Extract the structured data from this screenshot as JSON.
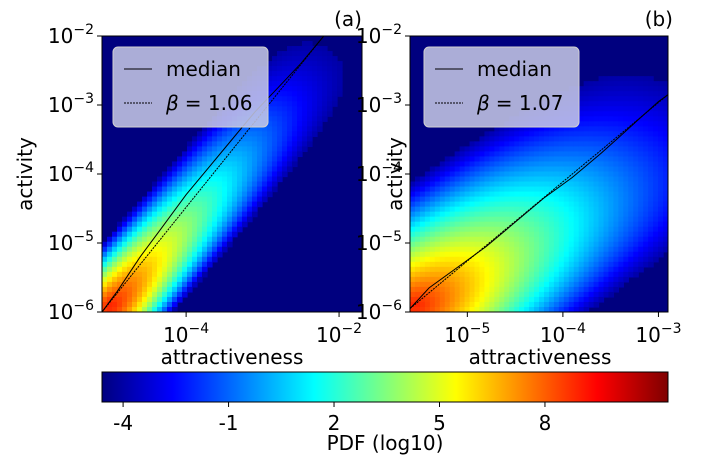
{
  "colors": {
    "jet": [
      "#00007f",
      "#0000ff",
      "#007fff",
      "#00ffff",
      "#7fff7f",
      "#ffff00",
      "#ff7f00",
      "#ff0000",
      "#7f0000"
    ],
    "legend_bg": "#c9cbe6",
    "median_line": "#000000"
  },
  "chart_data": [
    {
      "type": "heatmap",
      "panel": "(a)",
      "xlabel": "attractiveness",
      "ylabel": "activity",
      "xscale": "log",
      "yscale": "log",
      "x_log_range": [
        -5.1,
        -1.7
      ],
      "ylim": [
        1e-06,
        0.01
      ],
      "xticks": [
        {
          "exp": -4,
          "label": "10",
          "sup": "−4"
        },
        {
          "exp": -2,
          "label": "10",
          "sup": "−2"
        }
      ],
      "yticks": [
        {
          "exp": -6,
          "label": "10",
          "sup": "−6"
        },
        {
          "exp": -5,
          "label": "10",
          "sup": "−5"
        },
        {
          "exp": -4,
          "label": "10",
          "sup": "−4"
        },
        {
          "exp": -3,
          "label": "10",
          "sup": "−3"
        },
        {
          "exp": -2,
          "label": "10",
          "sup": "−2"
        }
      ],
      "legend": {
        "placement": "top-left",
        "entries": [
          {
            "label": "median",
            "style": "solid"
          },
          {
            "label": "= 1.06",
            "symbol": "β",
            "style": "dotted"
          }
        ]
      },
      "beta": 1.06,
      "median_log": [
        [
          -5.1,
          -6.0
        ],
        [
          -4.9,
          -5.7
        ],
        [
          -4.6,
          -5.2
        ],
        [
          -4.3,
          -4.75
        ],
        [
          -4.0,
          -4.3
        ],
        [
          -3.7,
          -3.9
        ],
        [
          -3.4,
          -3.5
        ],
        [
          -3.1,
          -3.1
        ],
        [
          -2.8,
          -2.75
        ],
        [
          -2.5,
          -2.4
        ],
        [
          -2.2,
          -2.0
        ]
      ],
      "ridge_log": [
        [
          -5.1,
          -6.1
        ],
        [
          -3.7,
          -4.3
        ],
        [
          -2.2,
          -2.3
        ],
        [
          -1.8,
          -1.9
        ]
      ],
      "ridge_halfwidth": 0.55,
      "peak_log": [
        -5.0,
        -5.9
      ],
      "pdf_range": [
        -4.6,
        9.0
      ]
    },
    {
      "type": "heatmap",
      "panel": "(b)",
      "xlabel": "attractiveness",
      "ylabel": "activity",
      "xscale": "log",
      "yscale": "log",
      "x_log_range": [
        -5.6,
        -2.9
      ],
      "ylim": [
        1e-06,
        0.01
      ],
      "xticks": [
        {
          "exp": -5,
          "label": "10",
          "sup": "−5"
        },
        {
          "exp": -4,
          "label": "10",
          "sup": "−4"
        },
        {
          "exp": -3,
          "label": "10",
          "sup": "−3"
        }
      ],
      "yticks": [
        {
          "exp": -6,
          "label": "10",
          "sup": "−6"
        },
        {
          "exp": -5,
          "label": "10",
          "sup": "−5"
        },
        {
          "exp": -4,
          "label": "10",
          "sup": "−4"
        },
        {
          "exp": -3,
          "label": "10",
          "sup": "−3"
        },
        {
          "exp": -2,
          "label": "10",
          "sup": "−2"
        }
      ],
      "legend": {
        "placement": "top-left",
        "entries": [
          {
            "label": "median",
            "style": "solid"
          },
          {
            "label": "= 1.07",
            "symbol": "β",
            "style": "dotted"
          }
        ]
      },
      "beta": 1.07,
      "median_log": [
        [
          -5.6,
          -5.95
        ],
        [
          -5.4,
          -5.65
        ],
        [
          -5.1,
          -5.35
        ],
        [
          -4.8,
          -5.05
        ],
        [
          -4.5,
          -4.7
        ],
        [
          -4.2,
          -4.35
        ],
        [
          -3.9,
          -4.05
        ],
        [
          -3.6,
          -3.7
        ],
        [
          -3.4,
          -3.45
        ],
        [
          -3.2,
          -3.2
        ],
        [
          -3.0,
          -2.95
        ],
        [
          -2.9,
          -2.85
        ]
      ],
      "ridge_log": [
        [
          -5.6,
          -6.0
        ],
        [
          -4.2,
          -4.6
        ],
        [
          -2.9,
          -3.4
        ]
      ],
      "ridge_halfwidth": 1.1,
      "peak_log": [
        -5.55,
        -5.9
      ],
      "pdf_range": [
        -4.6,
        9.0
      ]
    }
  ],
  "colorbar": {
    "label": "PDF (log10)",
    "range": [
      -4.6,
      11.5
    ],
    "ticks": [
      {
        "value": -4,
        "label": "-4"
      },
      {
        "value": -1,
        "label": "-1"
      },
      {
        "value": 2,
        "label": "2"
      },
      {
        "value": 5,
        "label": "5"
      },
      {
        "value": 8,
        "label": "8"
      }
    ]
  }
}
